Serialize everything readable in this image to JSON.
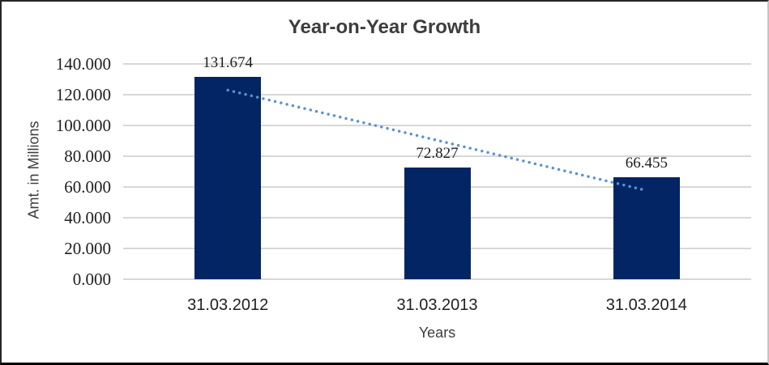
{
  "chart_data": {
    "type": "bar",
    "title": "Year-on-Year Growth",
    "categories": [
      "31.03.2012",
      "31.03.2013",
      "31.03.2014"
    ],
    "values": [
      131.674,
      72.827,
      66.455
    ],
    "data_labels": [
      "131.674",
      "72.827",
      "66.455"
    ],
    "xlabel": "Years",
    "ylabel": "Amt. in Millions",
    "ylim": [
      0,
      140
    ],
    "ytick_step": 20,
    "ytick_labels": [
      "0.000",
      "20.000",
      "40.000",
      "60.000",
      "80.000",
      "100.000",
      "120.000",
      "140.000"
    ],
    "grid": true,
    "legend": "none",
    "trendline": {
      "type": "linear",
      "style": "dotted"
    },
    "colors": {
      "bar": "#042563",
      "trendline": "#5b91d2",
      "gridline": "#d7d7d7",
      "title_text": "#3d3d3d",
      "tick_text": "#1f1f1f"
    }
  }
}
